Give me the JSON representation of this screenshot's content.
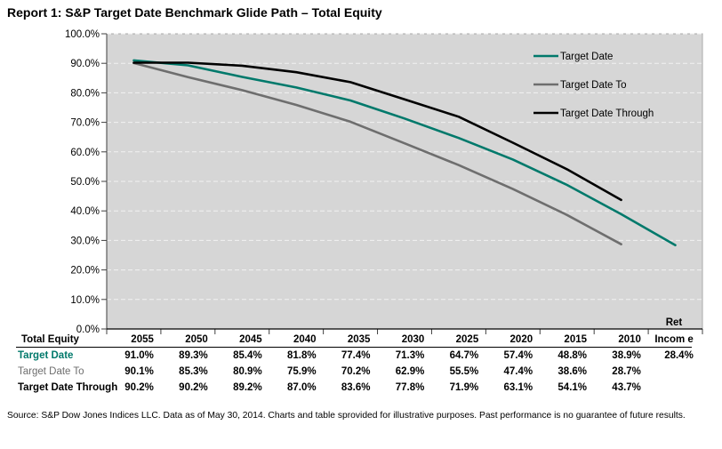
{
  "title": "Report 1: S&P Target Date Benchmark Glide Path – Total Equity",
  "chart_data": {
    "type": "line",
    "title": "",
    "xlabel": "",
    "ylabel": "",
    "ylim": [
      0,
      100
    ],
    "grid": true,
    "legend_position": "top-right-inside",
    "plot_bg": "#d6d6d6",
    "grid_color": "#f2f2f2",
    "axis_color": "#3f3f3f",
    "y_tick_labels": [
      "100.0%",
      "90.0%",
      "80.0%",
      "70.0%",
      "60.0%",
      "50.0%",
      "40.0%",
      "30.0%",
      "20.0%",
      "10.0%",
      "0.0%"
    ],
    "categories": [
      "2055",
      "2050",
      "2045",
      "2040",
      "2035",
      "2030",
      "2025",
      "2020",
      "2015",
      "2010",
      "Ret Income"
    ],
    "series": [
      {
        "name": "Target Date",
        "color": "#00796B",
        "values": [
          91.0,
          89.3,
          85.4,
          81.8,
          77.4,
          71.3,
          64.7,
          57.4,
          48.8,
          38.9,
          28.4
        ]
      },
      {
        "name": "Target Date To",
        "color": "#6E6E6E",
        "values": [
          90.1,
          85.3,
          80.9,
          75.9,
          70.2,
          62.9,
          55.5,
          47.4,
          38.6,
          28.7
        ]
      },
      {
        "name": "Target Date Through",
        "color": "#000000",
        "values": [
          90.2,
          90.2,
          89.2,
          87.0,
          83.6,
          77.8,
          71.9,
          63.1,
          54.1,
          43.7
        ]
      }
    ]
  },
  "table": {
    "corner_label": "Total Equity",
    "columns": [
      "2055",
      "2050",
      "2045",
      "2040",
      "2035",
      "2030",
      "2025",
      "2020",
      "2015",
      "2010"
    ],
    "last_column": {
      "line1": "Ret",
      "line2": "Incom e"
    },
    "rows": [
      {
        "label": "Target Date",
        "color": "#00796B",
        "bold": true,
        "values": [
          "91.0%",
          "89.3%",
          "85.4%",
          "81.8%",
          "77.4%",
          "71.3%",
          "64.7%",
          "57.4%",
          "48.8%",
          "38.9%",
          "28.4%"
        ]
      },
      {
        "label": "Target Date To",
        "color": "#6E6E6E",
        "bold": false,
        "values": [
          "90.1%",
          "85.3%",
          "80.9%",
          "75.9%",
          "70.2%",
          "62.9%",
          "55.5%",
          "47.4%",
          "38.6%",
          "28.7%",
          ""
        ]
      },
      {
        "label": "Target Date Through",
        "color": "#000000",
        "bold": true,
        "values": [
          "90.2%",
          "90.2%",
          "89.2%",
          "87.0%",
          "83.6%",
          "77.8%",
          "71.9%",
          "63.1%",
          "54.1%",
          "43.7%",
          ""
        ]
      }
    ]
  },
  "source_text": "Source: S&P Dow Jones Indices LLC.  Data as of May 30, 2014.  Charts and table sprovided for illustrative purposes.  Past performance is no guarantee of future results."
}
